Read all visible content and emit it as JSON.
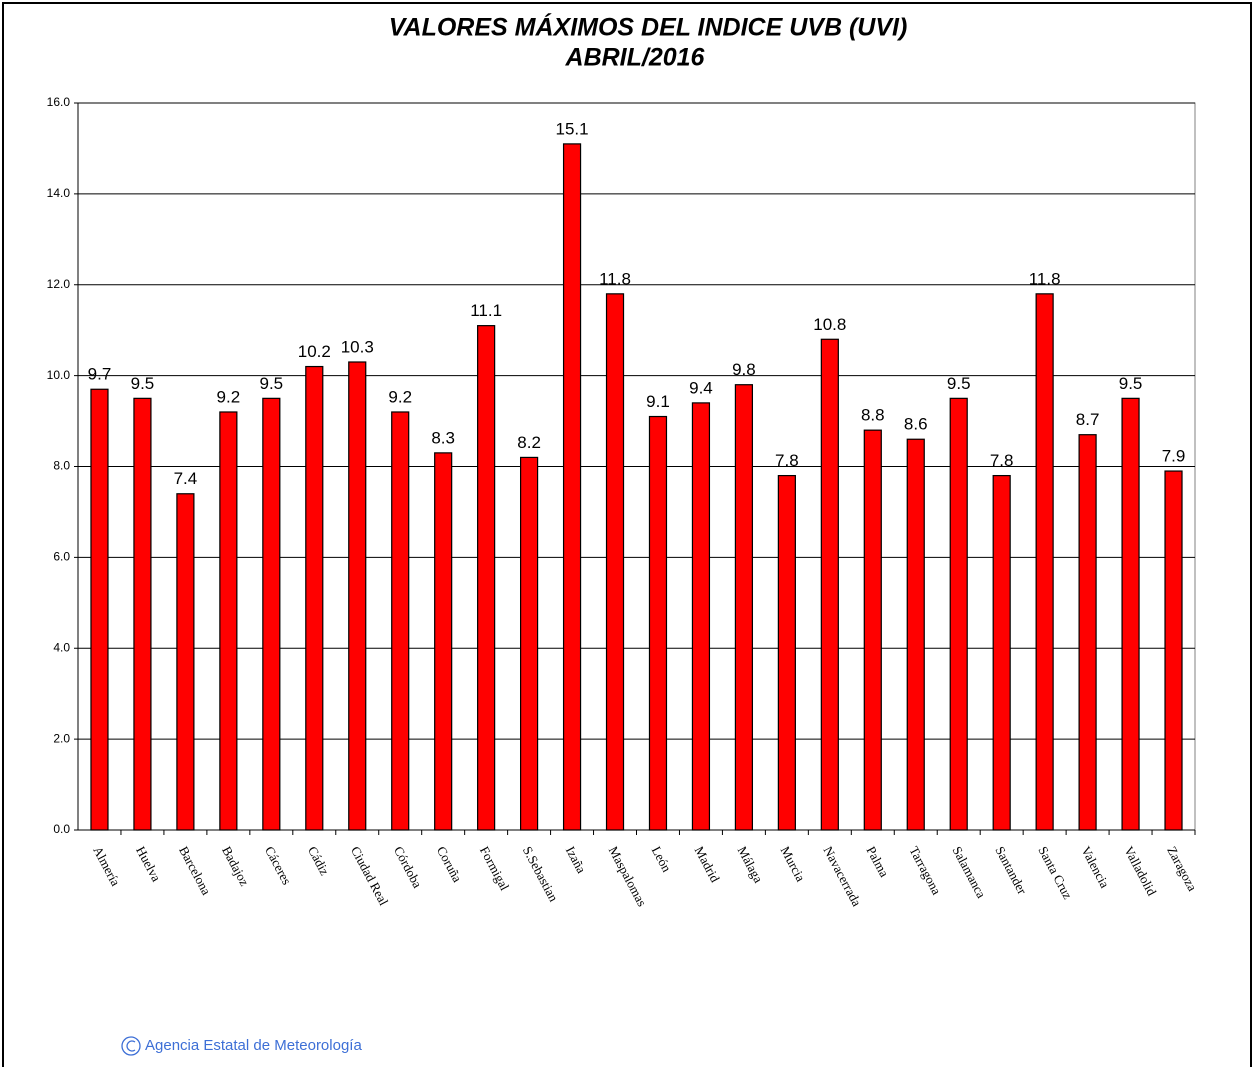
{
  "chart_data": {
    "type": "bar",
    "title": "VALORES MÁXIMOS DEL INDICE UVB (UVI)",
    "subtitle": "ABRIL/2016",
    "credit": "Agencia Estatal de Meteorología",
    "categories": [
      "Almería",
      "Huelva",
      "Barcelona",
      "Badajoz",
      "Cáceres",
      "Cádiz",
      "Ciudad Real",
      "Córdoba",
      "Coruña",
      "Formigal",
      "S.Sebastian",
      "Izaña",
      "Maspalomas",
      "León",
      "Madrid",
      "Málaga",
      "Murcia",
      "Navacerrada",
      "Palma",
      "Tarragona",
      "Salamanca",
      "Santander",
      "Santa Cruz",
      "Valencia",
      "Valladolid",
      "Zaragoza"
    ],
    "values": [
      9.7,
      9.5,
      7.4,
      9.2,
      9.5,
      10.2,
      10.3,
      9.2,
      8.3,
      11.1,
      8.2,
      15.1,
      11.8,
      9.1,
      9.4,
      9.8,
      7.8,
      10.8,
      8.8,
      8.6,
      9.5,
      7.8,
      11.8,
      8.7,
      9.5,
      7.9
    ],
    "color": "#ff0000",
    "ylim": [
      0,
      16
    ],
    "yticks": [
      {
        "value": 0,
        "label": "0.0"
      },
      {
        "value": 2,
        "label": "2.0"
      },
      {
        "value": 4,
        "label": "4.0"
      },
      {
        "value": 6,
        "label": "6.0"
      },
      {
        "value": 8,
        "label": "8.0"
      },
      {
        "value": 10,
        "label": "10.0"
      },
      {
        "value": 12,
        "label": "12.0"
      },
      {
        "value": 14,
        "label": "14.0"
      },
      {
        "value": 16,
        "label": "16.0"
      }
    ],
    "grid": true
  }
}
